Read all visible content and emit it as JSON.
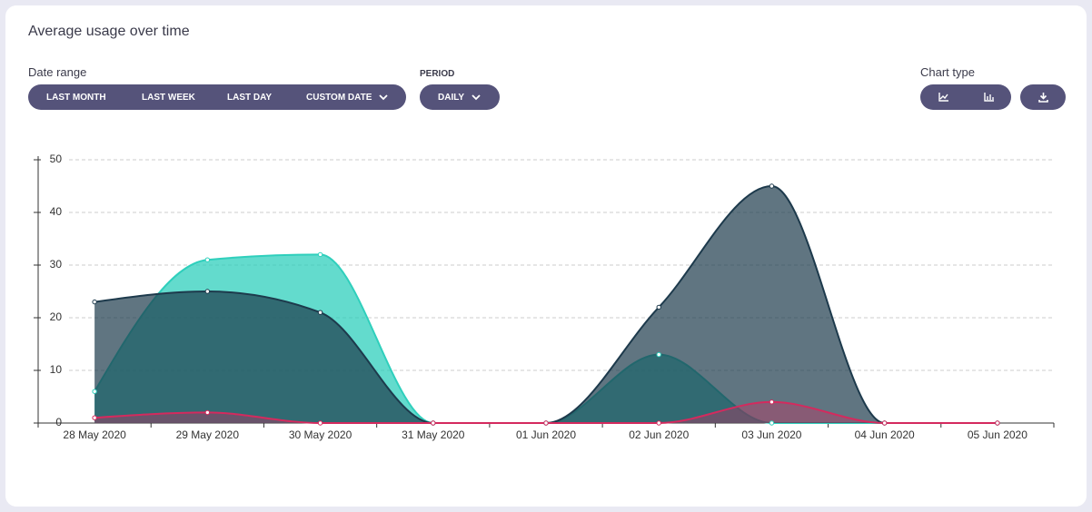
{
  "header": {
    "title": "Average usage over time"
  },
  "controls": {
    "date_range": {
      "label": "Date range",
      "options": [
        "LAST MONTH",
        "LAST WEEK",
        "LAST DAY",
        "CUSTOM DATE"
      ]
    },
    "period": {
      "label": "PERIOD",
      "value": "DAILY"
    },
    "chart_type": {
      "label": "Chart type"
    }
  },
  "chart_data": {
    "type": "area",
    "categories": [
      "28 May 2020",
      "29 May 2020",
      "30 May 2020",
      "31 May 2020",
      "01 Jun 2020",
      "02 Jun 2020",
      "03 Jun 2020",
      "04 Jun 2020",
      "05 Jun 2020"
    ],
    "series": [
      {
        "color": "#2fcfbc",
        "values": [
          6,
          31,
          32,
          0,
          0,
          13,
          0,
          0,
          0
        ]
      },
      {
        "color": "#1d3a4c",
        "values": [
          23,
          25,
          21,
          0,
          0,
          22,
          45,
          0,
          0
        ]
      },
      {
        "color": "#d42a5e",
        "values": [
          1,
          2,
          0,
          0,
          0,
          0,
          4,
          0,
          0
        ]
      }
    ],
    "ylim": [
      0,
      50
    ],
    "yticks": [
      0,
      10,
      20,
      30,
      40,
      50
    ],
    "grid": true
  }
}
